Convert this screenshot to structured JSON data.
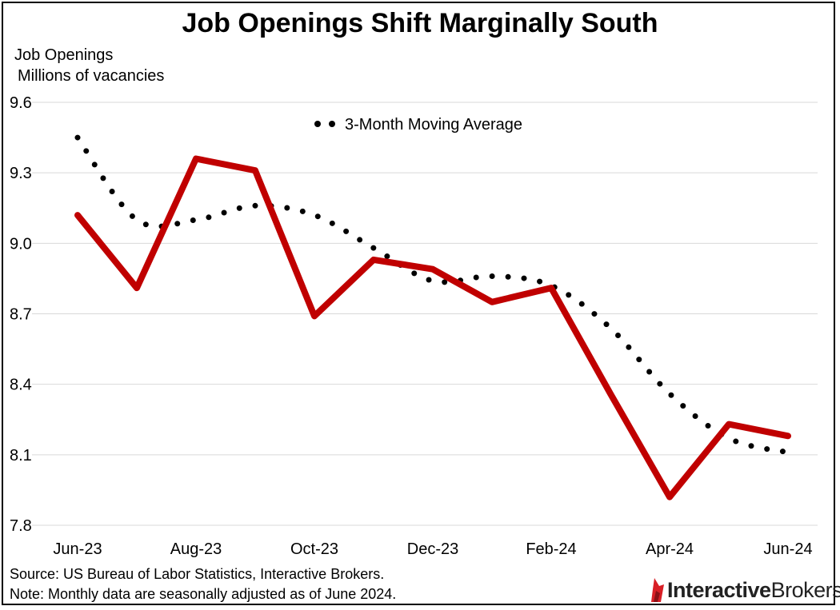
{
  "page": {
    "title": "Job Openings Shift Marginally South",
    "ylabel_line1": "Job Openings",
    "ylabel_line2": "Millions of vacancies",
    "source": "Source: US Bureau of Labor Statistics, Interactive Brokers.",
    "note": "Note: Monthly data are seasonally adjusted as of June 2024.",
    "logo_bold": "Interactive",
    "logo_regular": "Brokers"
  },
  "colors": {
    "series_line": "#c00000",
    "moving_average": "#000000",
    "grid": "#d9d9d9",
    "logo_red": "#d81f26"
  },
  "chart_data": {
    "type": "line",
    "title": "Job Openings Shift Marginally South",
    "ylabel": "Job Openings\nMillions of vacancies",
    "xlabel": "",
    "x": [
      "Jun-23",
      "Jul-23",
      "Aug-23",
      "Sep-23",
      "Oct-23",
      "Nov-23",
      "Dec-23",
      "Jan-24",
      "Feb-24",
      "Mar-24",
      "Apr-24",
      "May-24",
      "Jun-24"
    ],
    "tick_labels": [
      "Jun-23",
      "Aug-23",
      "Oct-23",
      "Dec-23",
      "Feb-24",
      "Apr-24",
      "Jun-24"
    ],
    "y_ticks": [
      "9.6",
      "9.3",
      "9.0",
      "8.7",
      "8.4",
      "8.1",
      "7.8"
    ],
    "ylim": [
      7.8,
      9.6
    ],
    "grid": true,
    "legend": "top-center",
    "series": [
      {
        "style": "solid",
        "values": [
          9.12,
          8.81,
          9.36,
          9.31,
          8.69,
          8.93,
          8.89,
          8.75,
          8.81,
          8.36,
          7.92,
          8.23,
          8.18
        ]
      },
      {
        "name": "3-Month Moving Average",
        "style": "dotted",
        "values": [
          9.45,
          9.1,
          9.1,
          9.16,
          9.12,
          8.98,
          8.84,
          8.86,
          8.82,
          8.64,
          8.36,
          8.17,
          8.11
        ]
      }
    ]
  }
}
